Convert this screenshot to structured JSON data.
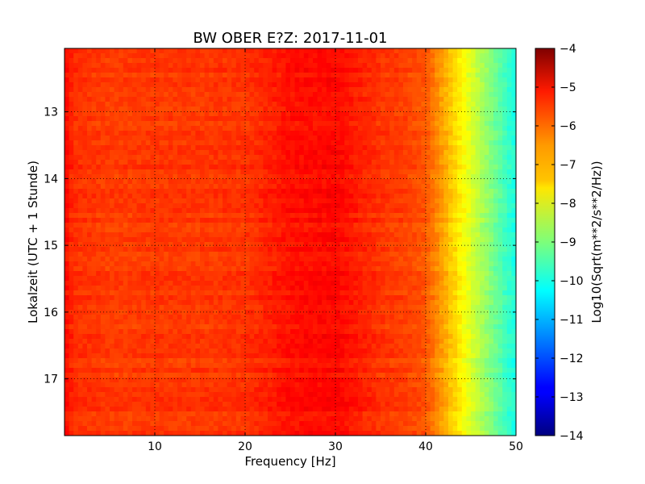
{
  "chart_data": {
    "type": "heatmap",
    "title": "BW OBER E?Z: 2017-11-01",
    "xlabel": "Frequency [Hz]",
    "ylabel": "Lokalzeit (UTC + 1 Stunde)",
    "xlim": [
      0,
      50
    ],
    "ylim": [
      12.05,
      17.85
    ],
    "y_inverted": true,
    "x_ticks": [
      10,
      20,
      30,
      40,
      50
    ],
    "x_tick_labels": [
      "10",
      "20",
      "30",
      "40",
      "50"
    ],
    "y_ticks": [
      13,
      14,
      15,
      16,
      17
    ],
    "y_tick_labels": [
      "13",
      "14",
      "15",
      "16",
      "17"
    ],
    "grid": true,
    "colormap": "jet",
    "colorbar": {
      "label": "Log10(Sqrt(m**2/s**2/Hz))",
      "range": [
        -14,
        -4
      ],
      "ticks": [
        -4,
        -5,
        -6,
        -7,
        -8,
        -9,
        -10,
        -11,
        -12,
        -13,
        -14
      ],
      "tick_labels": [
        "−4",
        "−5",
        "−6",
        "−7",
        "−8",
        "−9",
        "−10",
        "−11",
        "−12",
        "−13",
        "−14"
      ]
    },
    "frequency_profile": {
      "frequency_hz": [
        0,
        1,
        5,
        10,
        15,
        20,
        23,
        25,
        28,
        30,
        32,
        35,
        38,
        40,
        41,
        42,
        43,
        44,
        45,
        46,
        47,
        48,
        49,
        50
      ],
      "log10_psd": [
        -5.3,
        -5.7,
        -5.85,
        -5.8,
        -5.8,
        -5.75,
        -5.55,
        -5.4,
        -5.35,
        -5.3,
        -5.5,
        -5.75,
        -5.9,
        -6.1,
        -6.5,
        -6.9,
        -7.3,
        -7.7,
        -8.1,
        -8.5,
        -8.9,
        -9.3,
        -9.7,
        -10.0
      ]
    },
    "colors": {
      "low": "#00007f",
      "high": "#7f0000"
    }
  }
}
